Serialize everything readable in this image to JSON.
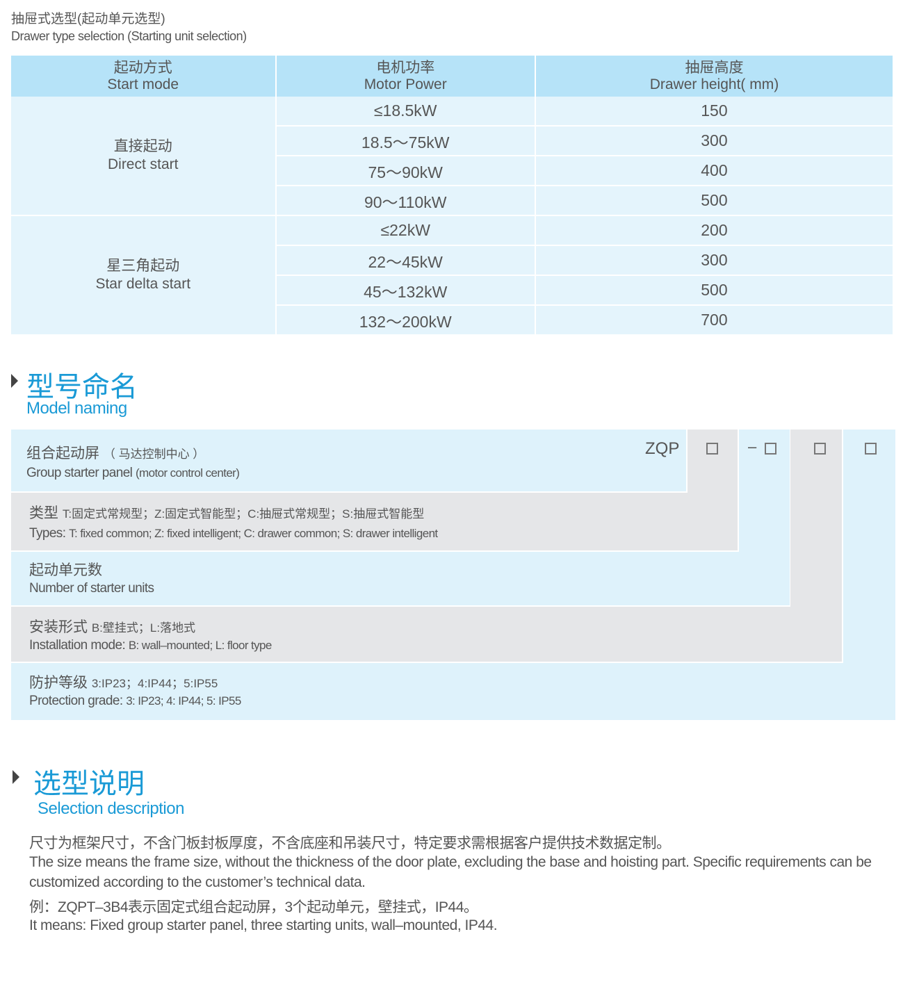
{
  "header": {
    "title_zh": "抽屉式选型(起动单元选型)",
    "title_en": "Drawer type selection (Starting unit selection)"
  },
  "table": {
    "columns": [
      {
        "zh": "起动方式",
        "en": "Start mode"
      },
      {
        "zh": "电机功率",
        "en": "Motor Power"
      },
      {
        "zh": "抽屉高度",
        "en": "Drawer height( mm)"
      }
    ],
    "groups": [
      {
        "zh": "直接起动",
        "en": "Direct start",
        "rows": [
          [
            "≤18.5kW",
            "150"
          ],
          [
            "18.5～75kW",
            "300"
          ],
          [
            "75～90kW",
            "400"
          ],
          [
            "90～110kW",
            "500"
          ]
        ]
      },
      {
        "zh": "星三角起动",
        "en": "Star delta start",
        "rows": [
          [
            "≤22kW",
            "200"
          ],
          [
            "22～45kW",
            "300"
          ],
          [
            "45～132kW",
            "500"
          ],
          [
            "132～200kW",
            "700"
          ]
        ]
      }
    ]
  },
  "model_naming": {
    "title_zh": "型号命名",
    "title_en": "Model naming",
    "prefix": "ZQP",
    "dash": "–",
    "rows": [
      {
        "zh": "组合起动屏",
        "zh_note": "（ 马达控制中心 ）",
        "en": "Group starter panel",
        "en_note": "(motor control center)"
      },
      {
        "zh": "类型",
        "zh_note": "T:固定式常规型；Z:固定式智能型；C:抽屉式常规型；S:抽屉式智能型",
        "en": "Types:",
        "en_note": "T: fixed common; Z: fixed intelligent; C: drawer common; S: drawer intelligent"
      },
      {
        "zh": "起动单元数",
        "zh_note": "",
        "en": "Number of starter units",
        "en_note": ""
      },
      {
        "zh": "安装形式",
        "zh_note": "B:壁挂式；L:落地式",
        "en": "Installation mode:",
        "en_note": "B: wall–mounted; L: floor type"
      },
      {
        "zh": "防护等级",
        "zh_note": "3:IP23；4:IP44；5:IP55",
        "en": "Protection grade:",
        "en_note": "3: IP23; 4: IP44; 5: IP55"
      }
    ]
  },
  "selection": {
    "title_zh": "选型说明",
    "title_en": "Selection description",
    "lines": [
      "尺寸为框架尺寸，不含门板封板厚度，不含底座和吊装尺寸，特定要求需根据客户提供技术数据定制。",
      "The size means the frame size, without the thickness of the door plate, excluding the base and hoisting part. Specific requirements can be",
      "customized according to the customer’s technical data.",
      "例：ZQPT–3B4表示固定式组合起动屏，3个起动单元，壁挂式，IP44。",
      "It means: Fixed group starter panel, three starting units, wall–mounted, IP44."
    ]
  },
  "colors": {
    "accent": "#1a9ad6",
    "header_bg": "#b6e3f8",
    "cell_bg": "#e4f4fc",
    "gray": "#e5e6e8"
  }
}
